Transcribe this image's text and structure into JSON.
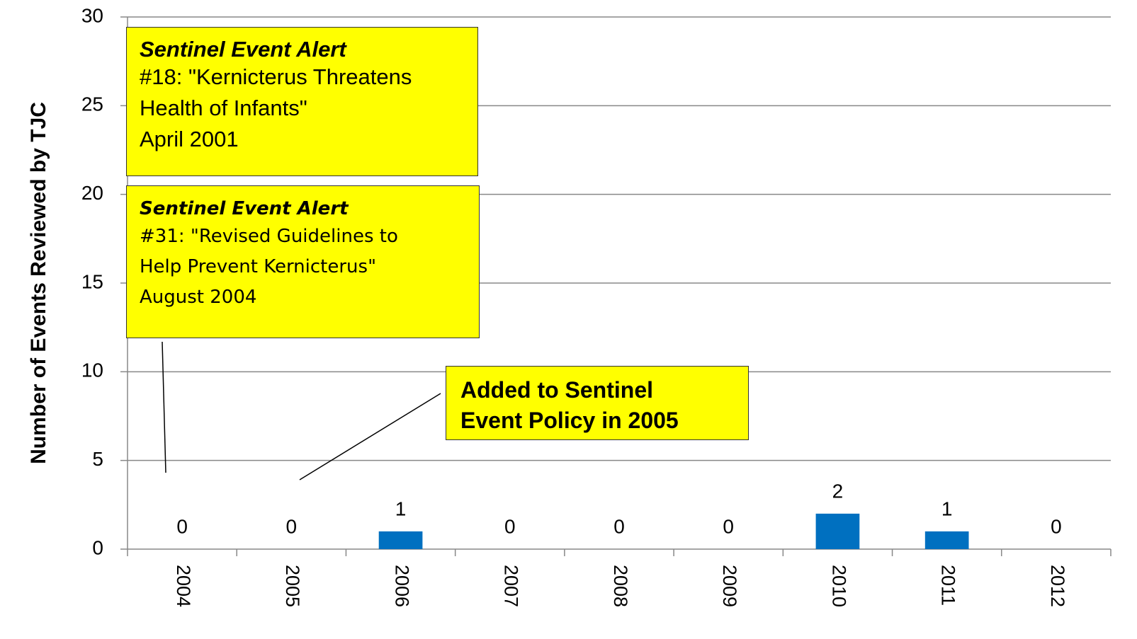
{
  "chart_data": {
    "type": "bar",
    "y_label": "Number of Events Reviewed by TJC",
    "categories": [
      "2004",
      "2005",
      "2006",
      "2007",
      "2008",
      "2009",
      "2010",
      "2011",
      "2012"
    ],
    "values": [
      0,
      0,
      1,
      0,
      0,
      0,
      2,
      1,
      0
    ],
    "color": "#0070c0",
    "ylim": [
      0,
      30
    ],
    "yticks": [
      0,
      5,
      10,
      15,
      20,
      25,
      30
    ],
    "grid": true,
    "annotations": [
      [
        "Sentinel Event Alert",
        "#18: \"Kernicterus  Threatens",
        "Health  of Infants\"",
        "April 2001"
      ],
      [
        "Sentinel Event Alert",
        "#31: \"Revised Guidelines to",
        "Help Prevent Kernicterus\"",
        "August 2004"
      ],
      [
        "Added to Sentinel",
        "Event Policy in 2005"
      ]
    ]
  }
}
